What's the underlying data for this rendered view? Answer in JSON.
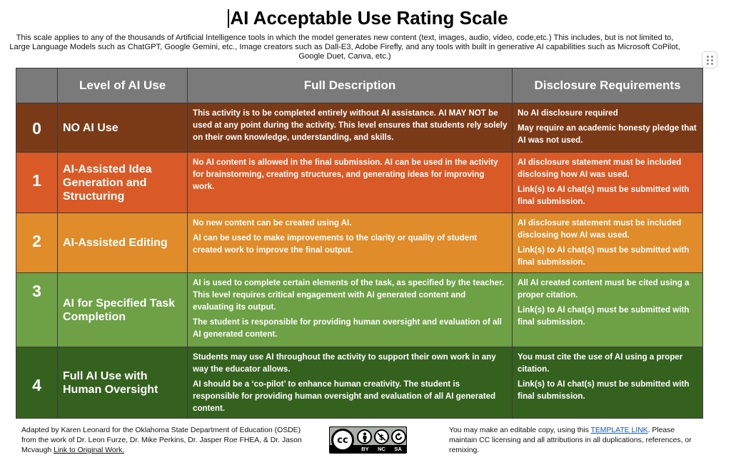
{
  "document": {
    "title": "AI Acceptable Use Rating Scale",
    "intro": "This scale applies to any of the thousands of Artificial Intelligence tools in which the model generates new content (text, images, audio, video, code,etc.) This includes, but is not limited to, Large Language Models such as ChatGPT, Google Gemini, etc., Image creators such as Dall-E3, Adobe Firefly, and any tools with built in generative AI capabilities such as Microsoft CoPilot, Google Duet, Canva, etc.)"
  },
  "table": {
    "headers": {
      "number": "",
      "level": "Level of AI Use",
      "description": "Full Description",
      "disclosure": "Disclosure Requirements"
    },
    "rows": [
      {
        "number": "0",
        "level": "NO AI Use",
        "description": [
          "This activity is to be completed entirely without AI assistance. AI MAY NOT be used at any point during the activity. This level ensures that students rely solely on their own knowledge, understanding, and skills."
        ],
        "disclosure": [
          "No AI disclosure required",
          "May require an academic honesty pledge that AI was not used."
        ]
      },
      {
        "number": "1",
        "level": "AI-Assisted Idea Generation and Structuring",
        "description": [
          "No AI content is allowed in the final submission. AI can be used in the activity for brainstorming, creating structures, and generating ideas for improving work."
        ],
        "disclosure": [
          "AI disclosure statement must be included disclosing how AI was used.",
          "Link(s) to AI chat(s) must be submitted with final submission."
        ]
      },
      {
        "number": "2",
        "level": "AI-Assisted Editing",
        "description": [
          "No new content can be created using AI.",
          "AI can be used to make improvements to the clarity or quality of student created work to improve the final output."
        ],
        "disclosure": [
          "AI disclosure statement must be included disclosing how AI was used.",
          "Link(s) to AI chat(s) must be submitted with final submission."
        ]
      },
      {
        "number": "3",
        "level": "AI for Specified Task Completion",
        "description": [
          "AI is used to complete certain elements of the task, as specified by the teacher. This level requires critical engagement with AI generated content and evaluating its output.",
          "The student is responsible for providing human oversight and evaluation of all AI generated content."
        ],
        "disclosure": [
          "All AI created content must be cited using a proper citation.",
          "Link(s) to AI chat(s) must be submitted with final submission."
        ]
      },
      {
        "number": "4",
        "level": "Full AI Use with Human Oversight",
        "description": [
          "Students may use AI throughout the activity to support their own work in any way the educator allows.",
          "AI should be a ‘co-pilot’ to enhance human creativity. The student is responsible for providing human oversight and evaluation of all AI generated content."
        ],
        "disclosure": [
          "You must cite the use of AI using a proper citation.",
          "Link(s) to AI chat(s) must be submitted with final submission."
        ]
      }
    ]
  },
  "footer": {
    "left_prefix": "Adapted by Karen Leonard for the Oklahoma State Department of Education (OSDE) from the work of Dr. Leon Furze, Dr. Mike Perkins, Dr. Jasper Roe FHEA, & Dr. Jason Mcvaugh ",
    "left_link": "Link to Original Work.",
    "right_prefix": "You may make an editable copy, using this ",
    "right_link": "TEMPLATE LINK",
    "right_suffix": ". Please maintain CC licensing and all attributions in all duplications, references, or remixing.",
    "license": {
      "main": "cc",
      "icons": [
        "by-icon",
        "nc-icon",
        "sa-icon"
      ],
      "labels": [
        "BY",
        "NC",
        "SA"
      ]
    }
  },
  "colors": {
    "header": "#7a7a7a",
    "level0": "#7b3a17",
    "level1": "#d95a26",
    "level2": "#e08c2a",
    "level3": "#6ea046",
    "level4": "#35611f",
    "link": "#1155cc"
  }
}
